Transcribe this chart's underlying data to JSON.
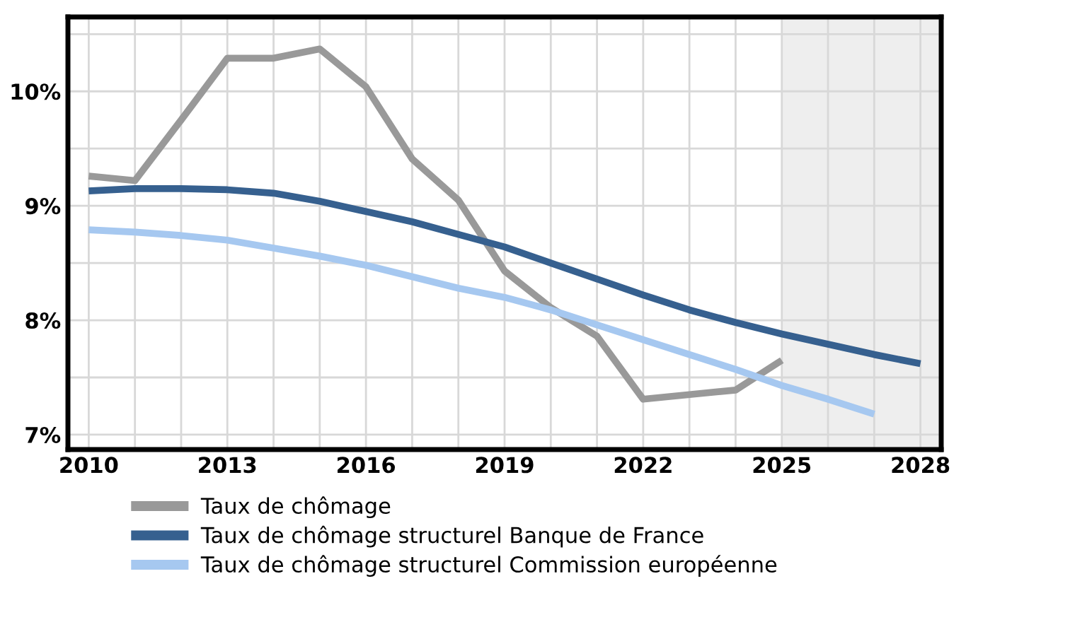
{
  "chart_data": {
    "type": "line",
    "x": [
      2010,
      2011,
      2012,
      2013,
      2014,
      2015,
      2016,
      2017,
      2018,
      2019,
      2020,
      2021,
      2022,
      2023,
      2024,
      2025,
      2026,
      2027,
      2028
    ],
    "series": [
      {
        "name": "Taux de chômage",
        "color": "#999999",
        "values": [
          9.26,
          9.22,
          9.75,
          10.29,
          10.29,
          10.37,
          10.04,
          9.41,
          9.05,
          8.43,
          8.11,
          7.86,
          7.31,
          7.35,
          7.39,
          7.65,
          null,
          null,
          null
        ]
      },
      {
        "name": "Taux de chômage structurel Banque de France",
        "color": "#36608f",
        "values": [
          9.13,
          9.15,
          9.15,
          9.14,
          9.11,
          9.04,
          8.95,
          8.86,
          8.75,
          8.64,
          8.5,
          8.36,
          8.22,
          8.09,
          7.98,
          7.88,
          7.79,
          7.7,
          7.62
        ]
      },
      {
        "name": "Taux de chômage structurel Commission européenne",
        "color": "#a6c8f0",
        "values": [
          8.79,
          8.77,
          8.74,
          8.7,
          8.63,
          8.56,
          8.48,
          8.38,
          8.28,
          8.2,
          8.09,
          7.96,
          7.83,
          7.7,
          7.57,
          7.43,
          7.31,
          7.18,
          null
        ]
      }
    ],
    "xlim": [
      2009.55,
      2028.45
    ],
    "xticks": [
      2010,
      {
        "value": 2011,
        "label": null
      },
      {
        "value": 2012,
        "label": null
      },
      2013,
      {
        "value": 2014,
        "label": null
      },
      {
        "value": 2015,
        "label": null
      },
      2016,
      {
        "value": 2017,
        "label": null
      },
      {
        "value": 2018,
        "label": null
      },
      2019,
      {
        "value": 2020,
        "label": null
      },
      {
        "value": 2021,
        "label": null
      },
      2022,
      {
        "value": 2023,
        "label": null
      },
      {
        "value": 2024,
        "label": null
      },
      2025,
      {
        "value": 2026,
        "label": null
      },
      {
        "value": 2027,
        "label": null
      },
      2028
    ],
    "ylim": [
      6.87,
      10.65
    ],
    "yticks": [
      {
        "value": 7,
        "label": "7%"
      },
      {
        "value": 7.5,
        "label": null
      },
      {
        "value": 8,
        "label": "8%"
      },
      {
        "value": 8.5,
        "label": null
      },
      {
        "value": 9,
        "label": "9%"
      },
      {
        "value": 9.5,
        "label": null
      },
      {
        "value": 10,
        "label": "10%"
      },
      {
        "value": 10.5,
        "label": null
      }
    ],
    "bands": [
      {
        "axis": "x",
        "from": 2025,
        "to": 2028.45,
        "color": "#eeeeee"
      }
    ],
    "grid": true,
    "legend": "bottom",
    "marker": "none",
    "line_style": "solid"
  }
}
